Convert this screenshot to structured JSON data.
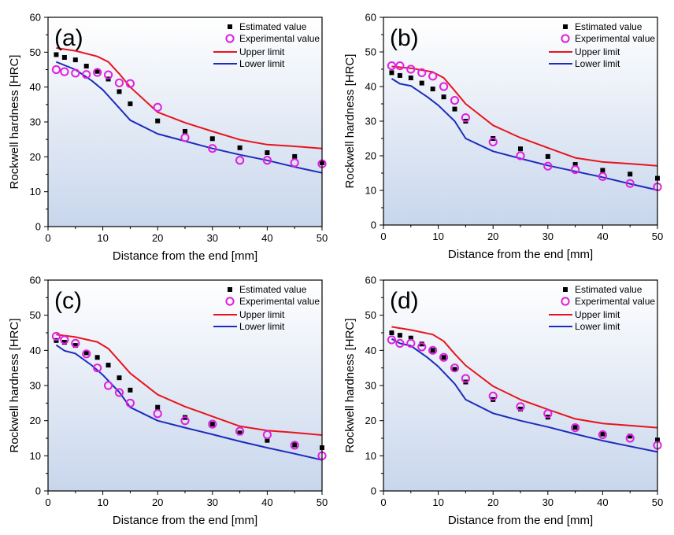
{
  "colors": {
    "estimated": "#000000",
    "experimental": "#e020e0",
    "upper": "#e8141c",
    "lower": "#1c2cbc",
    "plot_bg_top": "#ffffff",
    "plot_bg_bottom": "#c8d6ec"
  },
  "chart_data": [
    {
      "type": "scatter",
      "panel_label": "(a)",
      "xlabel": "Distance from the end [mm]",
      "ylabel": "Rockwell hardness [HRC]",
      "xlim": [
        0,
        50
      ],
      "ylim": [
        0,
        60
      ],
      "xticks": [
        0,
        10,
        20,
        30,
        40,
        50
      ],
      "yticks": [
        0,
        10,
        20,
        30,
        40,
        50,
        60
      ],
      "legend_position": "top-right",
      "series": [
        {
          "name": "Estimated value",
          "kind": "scatter-square",
          "points": [
            [
              1.5,
              49.3
            ],
            [
              3,
              48.5
            ],
            [
              5,
              47.8
            ],
            [
              7,
              46
            ],
            [
              9,
              44.5
            ],
            [
              11,
              42.3
            ],
            [
              13,
              38.7
            ],
            [
              15,
              35.2
            ],
            [
              20,
              30.3
            ],
            [
              25,
              27.3
            ],
            [
              30,
              25.2
            ],
            [
              35,
              22.6
            ],
            [
              40,
              21.2
            ],
            [
              45,
              20.1
            ],
            [
              50,
              18.3
            ]
          ]
        },
        {
          "name": "Experimental value",
          "kind": "scatter-circle",
          "points": [
            [
              1.5,
              45
            ],
            [
              3,
              44.4
            ],
            [
              5,
              44
            ],
            [
              7,
              43.6
            ],
            [
              9,
              44.2
            ],
            [
              11,
              43.5
            ],
            [
              13,
              41.2
            ],
            [
              15,
              41
            ],
            [
              20,
              34.2
            ],
            [
              25,
              25.5
            ],
            [
              30,
              22.4
            ],
            [
              35,
              19
            ],
            [
              40,
              19
            ],
            [
              45,
              18.3
            ],
            [
              50,
              18
            ]
          ]
        },
        {
          "name": "Upper limit",
          "kind": "line",
          "points": [
            [
              1.5,
              51.2
            ],
            [
              5,
              50.4
            ],
            [
              9,
              48.8
            ],
            [
              11,
              47.2
            ],
            [
              13,
              43.8
            ],
            [
              15,
              40
            ],
            [
              20,
              32.8
            ],
            [
              25,
              29.8
            ],
            [
              30,
              27.3
            ],
            [
              35,
              24.9
            ],
            [
              40,
              23.5
            ],
            [
              45,
              23
            ],
            [
              50,
              22.4
            ]
          ]
        },
        {
          "name": "Lower limit",
          "kind": "line",
          "points": [
            [
              1.5,
              47.2
            ],
            [
              5,
              45
            ],
            [
              8,
              41.8
            ],
            [
              10,
              39.2
            ],
            [
              13,
              34
            ],
            [
              15,
              30.5
            ],
            [
              20,
              26.6
            ],
            [
              25,
              24.5
            ],
            [
              30,
              22.4
            ],
            [
              35,
              20.6
            ],
            [
              40,
              19
            ],
            [
              45,
              17.1
            ],
            [
              50,
              15.4
            ]
          ]
        }
      ]
    },
    {
      "type": "scatter",
      "panel_label": "(b)",
      "xlabel": "Distance from the end [mm]",
      "ylabel": "Rockwell hardness [HRC]",
      "xlim": [
        0,
        50
      ],
      "ylim": [
        0,
        60
      ],
      "xticks": [
        0,
        10,
        20,
        30,
        40,
        50
      ],
      "yticks": [
        0,
        10,
        20,
        30,
        40,
        50,
        60
      ],
      "legend_position": "top-right",
      "series": [
        {
          "name": "Estimated value",
          "kind": "scatter-square",
          "points": [
            [
              1.5,
              44
            ],
            [
              3,
              43.2
            ],
            [
              5,
              42.5
            ],
            [
              7,
              41
            ],
            [
              9,
              39.3
            ],
            [
              11,
              37
            ],
            [
              13,
              33.5
            ],
            [
              15,
              30
            ],
            [
              20,
              25
            ],
            [
              25,
              22
            ],
            [
              30,
              19.8
            ],
            [
              35,
              17.5
            ],
            [
              40,
              15.8
            ],
            [
              45,
              14.7
            ],
            [
              50,
              13.5
            ]
          ]
        },
        {
          "name": "Experimental value",
          "kind": "scatter-circle",
          "points": [
            [
              1.5,
              46
            ],
            [
              3,
              46
            ],
            [
              5,
              45
            ],
            [
              7,
              44
            ],
            [
              9,
              43
            ],
            [
              11,
              40
            ],
            [
              13,
              36
            ],
            [
              15,
              31
            ],
            [
              20,
              24
            ],
            [
              25,
              20
            ],
            [
              30,
              17
            ],
            [
              35,
              16
            ],
            [
              40,
              14
            ],
            [
              45,
              12
            ],
            [
              50,
              11
            ]
          ]
        },
        {
          "name": "Upper limit",
          "kind": "line",
          "points": [
            [
              1.5,
              45.8
            ],
            [
              5,
              45.3
            ],
            [
              9,
              44.2
            ],
            [
              11,
              42.5
            ],
            [
              13,
              38.8
            ],
            [
              15,
              35
            ],
            [
              20,
              28.8
            ],
            [
              25,
              25.2
            ],
            [
              30,
              22.3
            ],
            [
              35,
              19.4
            ],
            [
              40,
              18.2
            ],
            [
              45,
              17.7
            ],
            [
              50,
              17.1
            ]
          ]
        },
        {
          "name": "Lower limit",
          "kind": "line",
          "points": [
            [
              1.5,
              42.3
            ],
            [
              3,
              40.8
            ],
            [
              5,
              40.2
            ],
            [
              8,
              37
            ],
            [
              10,
              34.6
            ],
            [
              13,
              30
            ],
            [
              15,
              25
            ],
            [
              20,
              21.3
            ],
            [
              25,
              19.2
            ],
            [
              30,
              17.2
            ],
            [
              35,
              15.5
            ],
            [
              40,
              13.8
            ],
            [
              45,
              11.9
            ],
            [
              50,
              10.1
            ]
          ]
        }
      ]
    },
    {
      "type": "scatter",
      "panel_label": "(c)",
      "xlabel": "Distance from the end [mm]",
      "ylabel": "Rockwell hardness [HRC]",
      "xlim": [
        0,
        50
      ],
      "ylim": [
        0,
        60
      ],
      "xticks": [
        0,
        10,
        20,
        30,
        40,
        50
      ],
      "yticks": [
        0,
        10,
        20,
        30,
        40,
        50,
        60
      ],
      "legend_position": "top-right",
      "series": [
        {
          "name": "Estimated value",
          "kind": "scatter-square",
          "points": [
            [
              1.5,
              42.8
            ],
            [
              3,
              42.3
            ],
            [
              5,
              41.4
            ],
            [
              7,
              39.3
            ],
            [
              9,
              38
            ],
            [
              11,
              35.8
            ],
            [
              13,
              32.2
            ],
            [
              15,
              28.7
            ],
            [
              20,
              23.8
            ],
            [
              25,
              20.9
            ],
            [
              30,
              19
            ],
            [
              35,
              16.5
            ],
            [
              40,
              14.4
            ],
            [
              45,
              13.1
            ],
            [
              50,
              12.3
            ]
          ]
        },
        {
          "name": "Experimental value",
          "kind": "scatter-circle",
          "points": [
            [
              1.5,
              44
            ],
            [
              3,
              43
            ],
            [
              5,
              42
            ],
            [
              7,
              39
            ],
            [
              9,
              35
            ],
            [
              11,
              30
            ],
            [
              13,
              28
            ],
            [
              15,
              25
            ],
            [
              20,
              22
            ],
            [
              25,
              20
            ],
            [
              30,
              19
            ],
            [
              35,
              17
            ],
            [
              40,
              16
            ],
            [
              45,
              13
            ],
            [
              50,
              10
            ]
          ]
        },
        {
          "name": "Upper limit",
          "kind": "line",
          "points": [
            [
              1.5,
              44.5
            ],
            [
              5,
              43.8
            ],
            [
              9,
              42.4
            ],
            [
              11,
              40.5
            ],
            [
              13,
              37
            ],
            [
              15,
              33.5
            ],
            [
              20,
              27.4
            ],
            [
              25,
              24
            ],
            [
              30,
              21.2
            ],
            [
              35,
              18.4
            ],
            [
              40,
              17.2
            ],
            [
              45,
              16.6
            ],
            [
              50,
              15.9
            ]
          ]
        },
        {
          "name": "Lower limit",
          "kind": "line",
          "points": [
            [
              1.5,
              41.5
            ],
            [
              3,
              39.9
            ],
            [
              5,
              39.1
            ],
            [
              8,
              35.7
            ],
            [
              10,
              33
            ],
            [
              13,
              28.1
            ],
            [
              15,
              23.8
            ],
            [
              20,
              20
            ],
            [
              25,
              18
            ],
            [
              30,
              16.1
            ],
            [
              35,
              14.1
            ],
            [
              40,
              12.3
            ],
            [
              45,
              10.6
            ],
            [
              50,
              8.8
            ]
          ]
        }
      ]
    },
    {
      "type": "scatter",
      "panel_label": "(d)",
      "xlabel": "Distance from the end [mm]",
      "ylabel": "Rockwell hardness [HRC]",
      "xlim": [
        0,
        50
      ],
      "ylim": [
        0,
        60
      ],
      "xticks": [
        0,
        10,
        20,
        30,
        40,
        50
      ],
      "yticks": [
        0,
        10,
        20,
        30,
        40,
        50,
        60
      ],
      "legend_position": "top-right",
      "series": [
        {
          "name": "Estimated value",
          "kind": "scatter-square",
          "points": [
            [
              1.5,
              45
            ],
            [
              3,
              44.3
            ],
            [
              5,
              43.5
            ],
            [
              7,
              41.8
            ],
            [
              9,
              40
            ],
            [
              11,
              38
            ],
            [
              13,
              34.6
            ],
            [
              15,
              31
            ],
            [
              20,
              26
            ],
            [
              25,
              23.3
            ],
            [
              30,
              21
            ],
            [
              35,
              18.1
            ],
            [
              40,
              16.2
            ],
            [
              45,
              15.6
            ],
            [
              50,
              14.5
            ]
          ]
        },
        {
          "name": "Experimental value",
          "kind": "scatter-circle",
          "points": [
            [
              1.5,
              43
            ],
            [
              3,
              42
            ],
            [
              5,
              42
            ],
            [
              7,
              41
            ],
            [
              9,
              40
            ],
            [
              11,
              38
            ],
            [
              13,
              35
            ],
            [
              15,
              32
            ],
            [
              20,
              27
            ],
            [
              25,
              24
            ],
            [
              30,
              22
            ],
            [
              35,
              18
            ],
            [
              40,
              16
            ],
            [
              45,
              15
            ],
            [
              50,
              13
            ]
          ]
        },
        {
          "name": "Upper limit",
          "kind": "line",
          "points": [
            [
              1.5,
              46.7
            ],
            [
              5,
              45.8
            ],
            [
              9,
              44.5
            ],
            [
              11,
              42.6
            ],
            [
              13,
              39
            ],
            [
              15,
              35.7
            ],
            [
              20,
              29.8
            ],
            [
              25,
              26
            ],
            [
              30,
              23.2
            ],
            [
              35,
              20.5
            ],
            [
              40,
              19.2
            ],
            [
              45,
              18.6
            ],
            [
              50,
              18
            ]
          ]
        },
        {
          "name": "Lower limit",
          "kind": "line",
          "points": [
            [
              1.5,
              43.3
            ],
            [
              3,
              42
            ],
            [
              5,
              41.3
            ],
            [
              8,
              38
            ],
            [
              10,
              35.4
            ],
            [
              13,
              30.5
            ],
            [
              15,
              26
            ],
            [
              20,
              22.1
            ],
            [
              25,
              20
            ],
            [
              30,
              18.2
            ],
            [
              35,
              16.2
            ],
            [
              40,
              14.3
            ],
            [
              45,
              12.7
            ],
            [
              50,
              11.1
            ]
          ]
        }
      ]
    }
  ]
}
